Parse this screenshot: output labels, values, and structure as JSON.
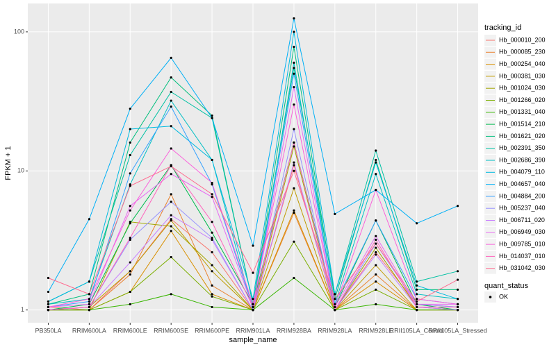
{
  "chart_data": {
    "type": "line",
    "x_label": "sample_name",
    "y_label": "FPKM + 1",
    "categories": [
      "PB350LA",
      "RRIM600LA",
      "RRIM600LE",
      "RRIM600SE",
      "RRIM600PE",
      "RRIM901LA",
      "RRIM928BA",
      "RRIM928LA",
      "RRIM928LE",
      "RRII105LA_Control",
      "RRII105LA_Stressed"
    ],
    "ylim": [
      0.81,
      160
    ],
    "yticks": [
      1,
      10,
      100
    ],
    "log_y": true,
    "grid": true,
    "legend_title": "tracking_id",
    "legend_position": "right",
    "shape_legend_title": "quant_status",
    "shape_levels": [
      "OK"
    ],
    "series": [
      {
        "name": "Hb_000010_200",
        "color": "#F8766D",
        "values": [
          1.05,
          1.0,
          1.9,
          4.5,
          2.6,
          1.0,
          11,
          1.0,
          2.6,
          1.1,
          1.05
        ]
      },
      {
        "name": "Hb_000085_230",
        "color": "#EA8331",
        "values": [
          1.0,
          1.0,
          1.8,
          6.8,
          1.5,
          1.0,
          5,
          1.0,
          1.8,
          1.0,
          1.0
        ]
      },
      {
        "name": "Hb_000254_040",
        "color": "#D89000",
        "values": [
          1.0,
          1.0,
          1.35,
          3.7,
          1.3,
          1.0,
          5.2,
          1.0,
          1.6,
          1.0,
          1.0
        ]
      },
      {
        "name": "Hb_000381_030",
        "color": "#C09B00",
        "values": [
          1.0,
          1.05,
          1.9,
          4.4,
          1.9,
          1.0,
          7.5,
          1.0,
          2.1,
          1.0,
          1.0
        ]
      },
      {
        "name": "Hb_001024_030",
        "color": "#A3A500",
        "values": [
          1.0,
          1.0,
          4.3,
          4.0,
          2.1,
          1.0,
          15,
          1.0,
          2.8,
          1.05,
          1.0
        ]
      },
      {
        "name": "Hb_001266_020",
        "color": "#7CAE00",
        "values": [
          1.0,
          1.0,
          1.35,
          2.4,
          1.25,
          1.0,
          3.1,
          1.0,
          1.4,
          1.0,
          1.0
        ]
      },
      {
        "name": "Hb_001331_040",
        "color": "#39B600",
        "values": [
          1.0,
          1.0,
          1.1,
          1.3,
          1.05,
          1.0,
          1.7,
          1.0,
          1.1,
          1.0,
          1.0
        ]
      },
      {
        "name": "Hb_001514_210",
        "color": "#00BB4E",
        "values": [
          1.0,
          1.1,
          4.2,
          11,
          3.6,
          1.1,
          16,
          1.05,
          4.4,
          1.1,
          1.0
        ]
      },
      {
        "name": "Hb_001621_020",
        "color": "#00BF7D",
        "values": [
          1.1,
          1.3,
          16,
          47,
          25,
          1.1,
          78,
          1.2,
          12,
          1.4,
          1.4
        ]
      },
      {
        "name": "Hb_002391_350",
        "color": "#00C1A3",
        "values": [
          1.15,
          1.6,
          13,
          37,
          24,
          1.1,
          55,
          1.3,
          14,
          1.6,
          1.9
        ]
      },
      {
        "name": "Hb_002686_390",
        "color": "#00BFC4",
        "values": [
          1.1,
          1.2,
          8,
          32,
          12,
          1.0,
          60,
          1.1,
          9.5,
          1.3,
          1.2
        ]
      },
      {
        "name": "Hb_004079_110",
        "color": "#00BAE0",
        "values": [
          1.15,
          1.6,
          20,
          21,
          12,
          1.2,
          100,
          1.3,
          11.5,
          1.5,
          1.2
        ]
      },
      {
        "name": "Hb_004657_040",
        "color": "#00B0F6",
        "values": [
          1.35,
          4.5,
          28,
          65,
          24,
          2.9,
          125,
          4.9,
          7.3,
          4.2,
          5.6
        ]
      },
      {
        "name": "Hb_004884_200",
        "color": "#35A2FF",
        "values": [
          1.05,
          1.15,
          9.6,
          29,
          8,
          1.05,
          50,
          1.1,
          4.4,
          1.2,
          1.1
        ]
      },
      {
        "name": "Hb_005237_040",
        "color": "#9590FF",
        "values": [
          1.0,
          1.05,
          3.2,
          6,
          3.3,
          1.0,
          20,
          1.0,
          3,
          1.1,
          1.05
        ]
      },
      {
        "name": "Hb_006711_020",
        "color": "#C77CFF",
        "values": [
          1.0,
          1.05,
          2.2,
          4.8,
          3.2,
          1.0,
          11.5,
          1.0,
          2.5,
          1.05,
          1.0
        ]
      },
      {
        "name": "Hb_006949_030",
        "color": "#E76BF3",
        "values": [
          1.05,
          1.1,
          5.6,
          9.5,
          6.5,
          1.05,
          40,
          1.05,
          3.4,
          1.1,
          1.1
        ]
      },
      {
        "name": "Hb_009785_010",
        "color": "#FA62DB",
        "values": [
          1.05,
          1.2,
          5.2,
          14.5,
          8.2,
          1.1,
          30,
          1.05,
          7.3,
          1.2,
          1.1
        ]
      },
      {
        "name": "Hb_014037_010",
        "color": "#FF62BC",
        "values": [
          1.0,
          1.05,
          3.3,
          11,
          4.3,
          1.05,
          16,
          1.0,
          3.2,
          1.05,
          1.05
        ]
      },
      {
        "name": "Hb_031042_030",
        "color": "#FF6C91",
        "values": [
          1.7,
          1.3,
          7.8,
          10.8,
          6.8,
          1.85,
          10,
          1.2,
          3,
          1.15,
          1.65
        ]
      }
    ]
  }
}
